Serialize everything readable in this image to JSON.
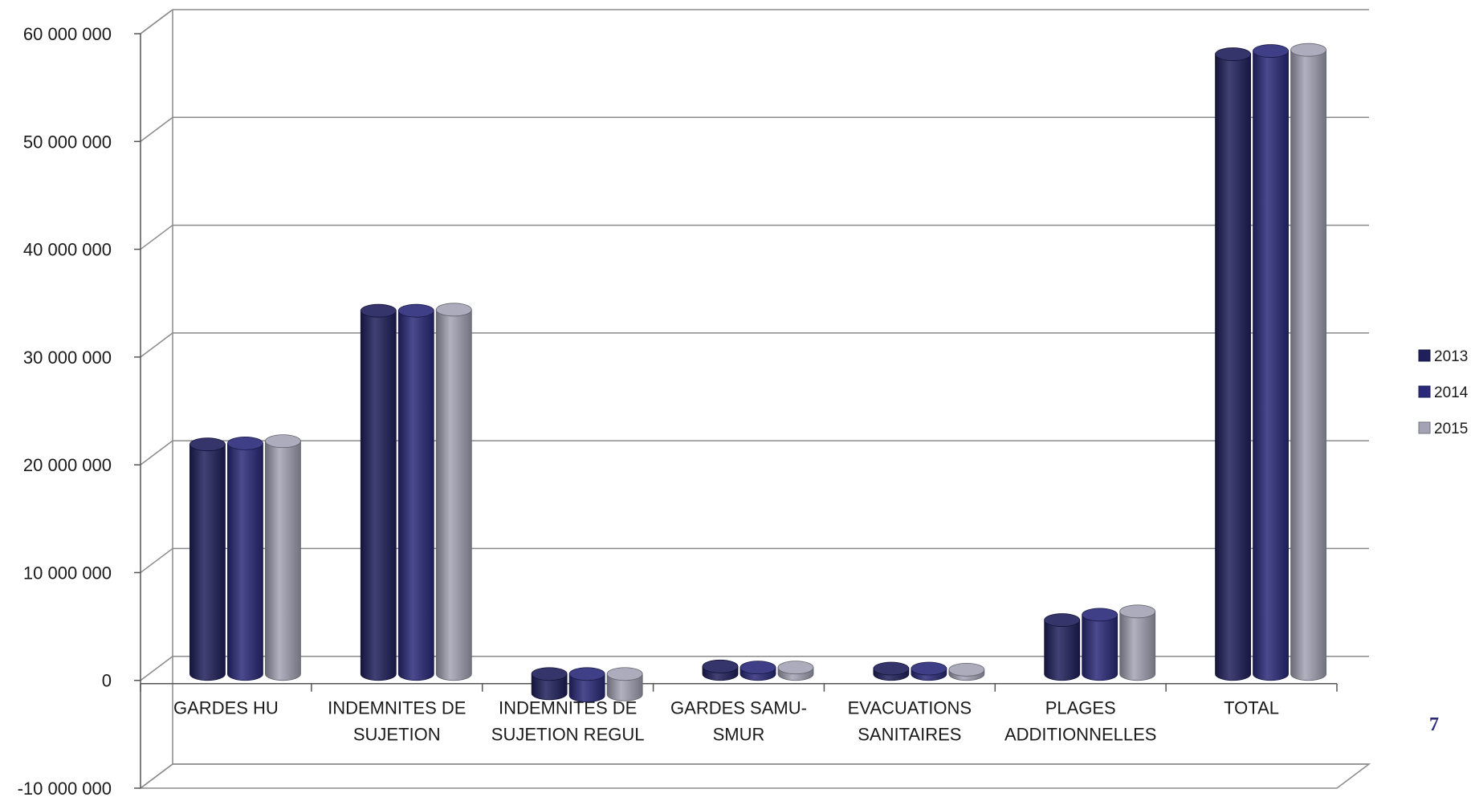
{
  "chart_data": {
    "type": "bar",
    "title": "",
    "xlabel": "",
    "ylabel": "",
    "ylim": [
      -10000000,
      60000000
    ],
    "y_ticks": [
      -10000000,
      0,
      10000000,
      20000000,
      30000000,
      40000000,
      50000000,
      60000000
    ],
    "y_tick_labels": [
      "-10 000 000",
      "0",
      "10 000 000",
      "20 000 000",
      "30 000 000",
      "40 000 000",
      "50 000 000",
      "60 000 000"
    ],
    "categories": [
      [
        "GARDES HU"
      ],
      [
        "INDEMNITES DE",
        "SUJETION"
      ],
      [
        "INDEMNITES DE",
        "SUJETION REGUL"
      ],
      [
        "GARDES SAMU-",
        "SMUR"
      ],
      [
        "EVACUATIONS",
        "SANITAIRES"
      ],
      [
        "PLAGES",
        "ADDITIONNELLES"
      ],
      [
        "TOTAL"
      ]
    ],
    "series": [
      {
        "name": "2013",
        "color": "#1f1f5c",
        "values": [
          21300000,
          33700000,
          -1800000,
          700000,
          500000,
          5000000,
          57500000
        ]
      },
      {
        "name": "2014",
        "color": "#2a2a7a",
        "values": [
          21400000,
          33700000,
          -2000000,
          600000,
          500000,
          5500000,
          57800000
        ]
      },
      {
        "name": "2015",
        "color": "#a3a3b5",
        "values": [
          21600000,
          33800000,
          -1900000,
          600000,
          400000,
          5800000,
          57900000
        ]
      }
    ],
    "grid": true,
    "legend": "right",
    "style": "3d-cylinder"
  },
  "page": {
    "number": "7"
  }
}
